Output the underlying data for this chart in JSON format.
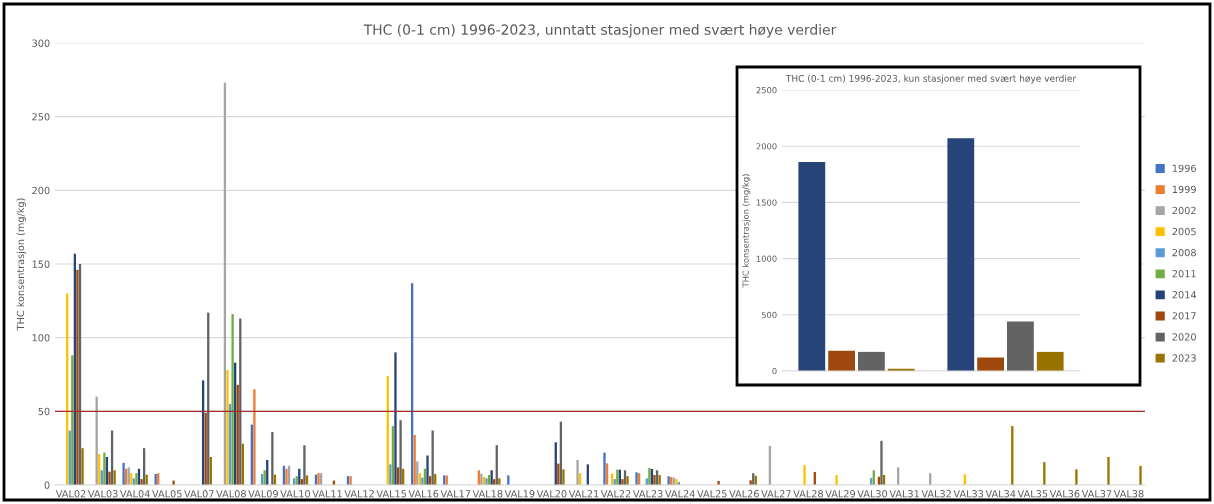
{
  "chart_data": [
    {
      "type": "bar",
      "title": "THC (0-1 cm) 1996-2023, unntatt stasjoner med svært høye verdier",
      "ylabel": "THC konsentrasjon (mg/kg)",
      "categories": [
        "VAL02",
        "VAL03",
        "VAL04",
        "VAL05",
        "VAL07",
        "VAL08",
        "VAL09",
        "VAL10",
        "VAL11",
        "VAL12",
        "VAL15",
        "VAL16",
        "VAL17",
        "VAL18",
        "VAL19",
        "VAL20",
        "VAL21",
        "VAL22",
        "VAL23",
        "VAL24",
        "VAL25",
        "VAL26",
        "VAL27",
        "VAL28",
        "VAL29",
        "VAL30",
        "VAL31",
        "VAL32",
        "VAL33",
        "VAL34",
        "VAL35",
        "VAL36",
        "VAL37",
        "VAL38"
      ],
      "series": [
        {
          "name": "1996",
          "color": "#4472c4",
          "values": [
            null,
            null,
            15,
            7.5,
            null,
            null,
            41,
            13,
            7,
            6,
            null,
            137,
            6.5,
            null,
            6.5,
            null,
            null,
            22,
            8.6,
            5.9,
            null,
            null,
            null,
            null,
            null,
            null,
            null,
            null,
            null,
            null,
            null,
            null,
            null,
            null
          ]
        },
        {
          "name": "1999",
          "color": "#ed7d31",
          "values": [
            null,
            null,
            11,
            8,
            null,
            null,
            65,
            11,
            8,
            6,
            null,
            34,
            6.5,
            10,
            null,
            null,
            null,
            14.7,
            8,
            5.4,
            null,
            null,
            null,
            null,
            null,
            null,
            null,
            null,
            null,
            null,
            null,
            null,
            null,
            null
          ]
        },
        {
          "name": "2002",
          "color": "#a5a5a5",
          "values": [
            null,
            60,
            12,
            null,
            null,
            273,
            null,
            13,
            8,
            null,
            null,
            16,
            null,
            7.7,
            null,
            null,
            17,
            null,
            null,
            5,
            null,
            null,
            26.5,
            null,
            null,
            null,
            12,
            8,
            null,
            null,
            null,
            null,
            null,
            null
          ]
        },
        {
          "name": "2005",
          "color": "#ffc000",
          "values": [
            130,
            21,
            8,
            null,
            null,
            78,
            null,
            null,
            null,
            null,
            74,
            8,
            null,
            5.4,
            null,
            null,
            8,
            7.7,
            null,
            4,
            null,
            null,
            null,
            13.5,
            6.8,
            null,
            null,
            null,
            7.2,
            null,
            null,
            null,
            null,
            null
          ]
        },
        {
          "name": "2008",
          "color": "#5b9bd5",
          "values": [
            37,
            10,
            4.5,
            null,
            null,
            55,
            7.5,
            4.5,
            null,
            null,
            14,
            5,
            null,
            4.5,
            null,
            null,
            null,
            4,
            4.5,
            2,
            null,
            null,
            null,
            null,
            null,
            4.7,
            null,
            null,
            null,
            null,
            null,
            null,
            null,
            null
          ]
        },
        {
          "name": "2011",
          "color": "#70ad47",
          "values": [
            88,
            22,
            8,
            null,
            null,
            116,
            10,
            6,
            null,
            null,
            40,
            11,
            null,
            6.8,
            null,
            null,
            null,
            10.4,
            11.5,
            null,
            null,
            null,
            null,
            null,
            null,
            10,
            null,
            null,
            null,
            null,
            null,
            null,
            null,
            null
          ]
        },
        {
          "name": "2014",
          "color": "#264478",
          "values": [
            157,
            19,
            11,
            null,
            71,
            83,
            17,
            11,
            null,
            null,
            90,
            20,
            null,
            10,
            null,
            29,
            14,
            10.4,
            10.9,
            null,
            null,
            null,
            null,
            null,
            null,
            null,
            null,
            null,
            null,
            null,
            null,
            null,
            null,
            null
          ]
        },
        {
          "name": "2017",
          "color": "#9e480e",
          "values": [
            146,
            9,
            4,
            3,
            49,
            68,
            null,
            4,
            3,
            null,
            12,
            6,
            null,
            4,
            null,
            14.5,
            null,
            4,
            6.8,
            null,
            2.7,
            3.2,
            null,
            8.8,
            null,
            5.6,
            null,
            null,
            null,
            null,
            null,
            null,
            null,
            null
          ]
        },
        {
          "name": "2020",
          "color": "#636363",
          "values": [
            150,
            37,
            25,
            null,
            117,
            113,
            36,
            27,
            null,
            null,
            44,
            37,
            null,
            27,
            null,
            43,
            null,
            10,
            10,
            null,
            null,
            8,
            null,
            null,
            null,
            30,
            null,
            null,
            null,
            null,
            null,
            null,
            null,
            null
          ]
        },
        {
          "name": "2023",
          "color": "#997300",
          "values": [
            25,
            10,
            7,
            null,
            19,
            28,
            7,
            6.5,
            null,
            null,
            11,
            7.5,
            null,
            4.5,
            null,
            10.6,
            null,
            6,
            6.8,
            null,
            null,
            6.3,
            null,
            null,
            null,
            6.8,
            null,
            null,
            null,
            40,
            15.5,
            10.6,
            19,
            13
          ]
        }
      ],
      "ylim": [
        0,
        300
      ],
      "yticks": [
        0,
        50,
        100,
        150,
        200,
        250,
        300
      ],
      "grid": "y",
      "legend": "right",
      "ref_lines": [
        {
          "axis": "y",
          "value": 50,
          "color": "#a52a2a"
        }
      ]
    },
    {
      "type": "bar",
      "title": "THC (0-1 cm) 1996-2023, kun stasjoner med svært høye verdier",
      "ylabel": "THC konsentrasjon (mg/kg)",
      "categories": [
        null,
        null
      ],
      "series": [
        {
          "color": "#264478",
          "values": [
            1860,
            2070
          ]
        },
        {
          "color": "#9e480e",
          "values": [
            180,
            120
          ]
        },
        {
          "color": "#636363",
          "values": [
            170,
            440
          ]
        },
        {
          "color": "#997300",
          "values": [
            20,
            170
          ]
        }
      ],
      "ylim": [
        0,
        2500
      ],
      "yticks": [
        0,
        500,
        1000,
        1500,
        2000,
        2500
      ],
      "grid": "y"
    }
  ]
}
